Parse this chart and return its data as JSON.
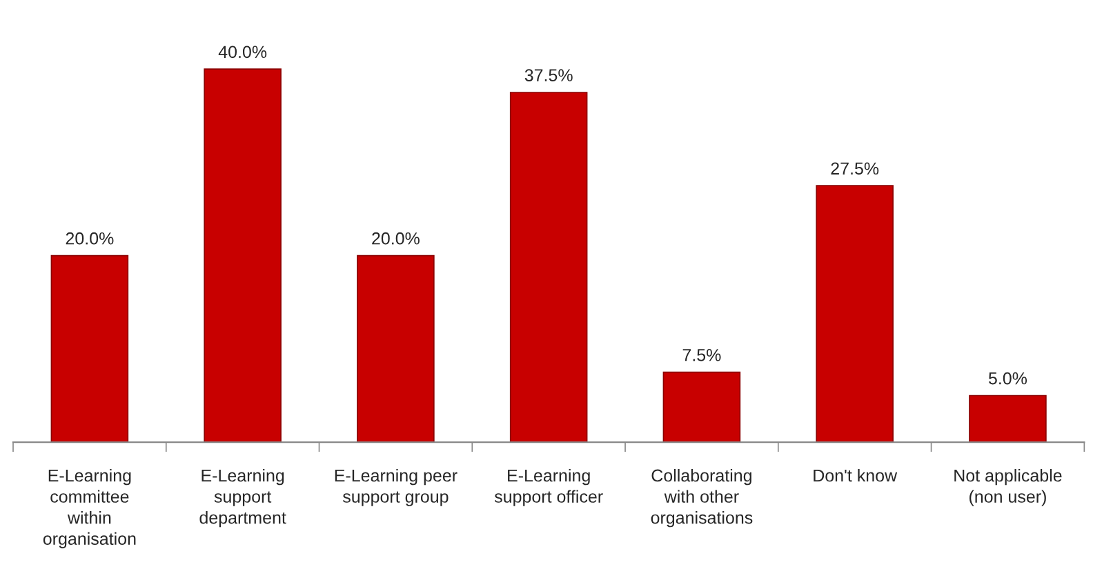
{
  "chart_data": {
    "type": "bar",
    "categories": [
      "E-Learning\ncommittee\nwithin\norganisation",
      "E-Learning\nsupport\ndepartment",
      "E-Learning peer\nsupport group",
      "E-Learning\nsupport officer",
      "Collaborating\nwith other\norganisations",
      "Don't know",
      "Not applicable\n(non user)"
    ],
    "values": [
      20.0,
      40.0,
      20.0,
      37.5,
      7.5,
      27.5,
      5.0
    ],
    "value_labels": [
      "20.0%",
      "40.0%",
      "20.0%",
      "37.5%",
      "7.5%",
      "27.5%",
      "5.0%"
    ],
    "color": "#c80000"
  }
}
